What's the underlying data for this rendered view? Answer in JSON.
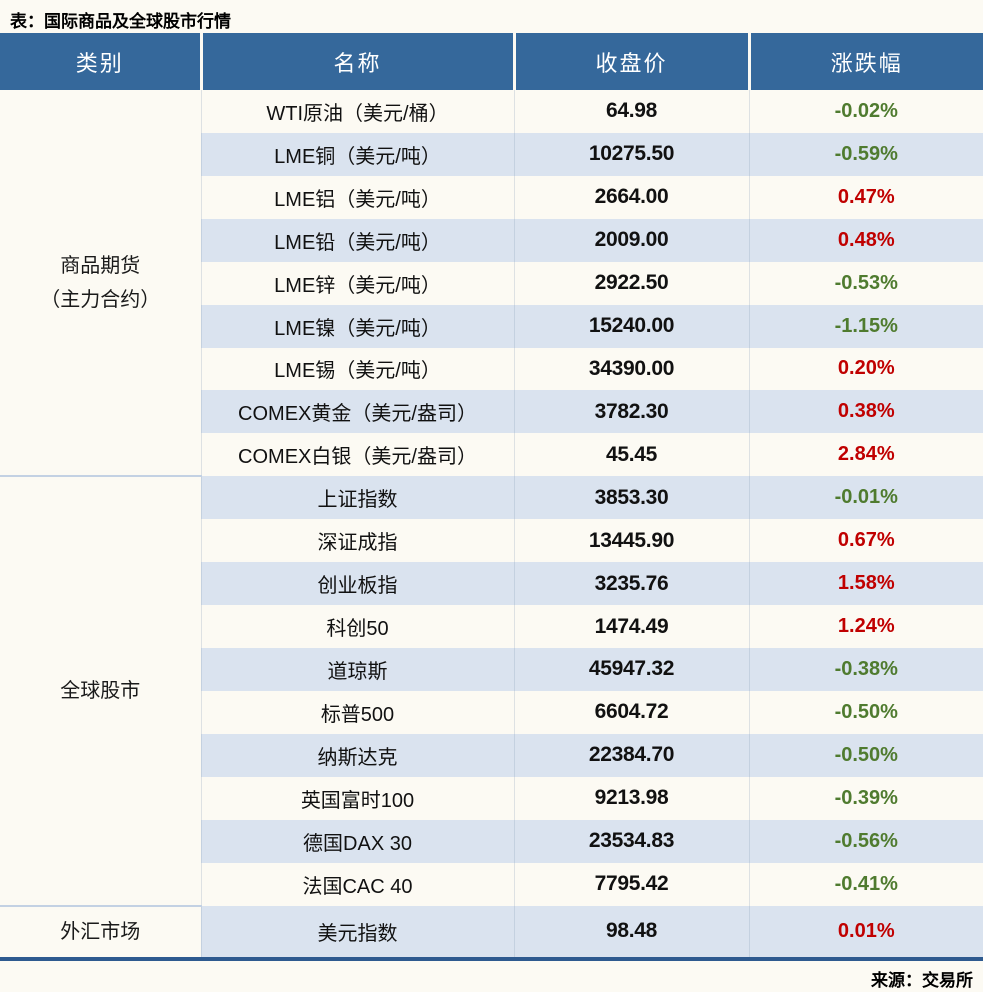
{
  "title": "表：国际商品及全球股市行情",
  "source": "来源：交易所",
  "colors": {
    "page_bg": "#FCFAF3",
    "header_bg": "#35689B",
    "stripe": "#DAE3EF",
    "up_red": "#C00000",
    "down_green": "#4F7B2F",
    "bottom_border": "#2E5A8F",
    "group_divider": "#C3D1E3"
  },
  "chart_data": {
    "type": "table",
    "title": "表：国际商品及全球股市行情",
    "source": "来源：交易所",
    "columns": [
      "类别",
      "名称",
      "收盘价",
      "涨跌幅"
    ],
    "groups": [
      {
        "category": "商品期货（主力合约）",
        "category_lines": [
          "商品期货",
          "（主力合约）"
        ],
        "rows": [
          {
            "name": "WTI原油（美元/桶）",
            "close": "64.98",
            "change": "-0.02%"
          },
          {
            "name": "LME铜（美元/吨）",
            "close": "10275.50",
            "change": "-0.59%"
          },
          {
            "name": "LME铝（美元/吨）",
            "close": "2664.00",
            "change": "0.47%"
          },
          {
            "name": "LME铅（美元/吨）",
            "close": "2009.00",
            "change": "0.48%"
          },
          {
            "name": "LME锌（美元/吨）",
            "close": "2922.50",
            "change": "-0.53%"
          },
          {
            "name": "LME镍（美元/吨）",
            "close": "15240.00",
            "change": "-1.15%"
          },
          {
            "name": "LME锡（美元/吨）",
            "close": "34390.00",
            "change": "0.20%"
          },
          {
            "name": "COMEX黄金（美元/盎司）",
            "close": "3782.30",
            "change": "0.38%"
          },
          {
            "name": "COMEX白银（美元/盎司）",
            "close": "45.45",
            "change": "2.84%"
          }
        ]
      },
      {
        "category": "全球股市",
        "category_lines": [
          "全球股市"
        ],
        "rows": [
          {
            "name": "上证指数",
            "close": "3853.30",
            "change": "-0.01%"
          },
          {
            "name": "深证成指",
            "close": "13445.90",
            "change": "0.67%"
          },
          {
            "name": "创业板指",
            "close": "3235.76",
            "change": "1.58%"
          },
          {
            "name": "科创50",
            "close": "1474.49",
            "change": "1.24%"
          },
          {
            "name": "道琼斯",
            "close": "45947.32",
            "change": "-0.38%"
          },
          {
            "name": "标普500",
            "close": "6604.72",
            "change": "-0.50%"
          },
          {
            "name": "纳斯达克",
            "close": "22384.70",
            "change": "-0.50%"
          },
          {
            "name": "英国富时100",
            "close": "9213.98",
            "change": "-0.39%"
          },
          {
            "name": "德国DAX 30",
            "close": "23534.83",
            "change": "-0.56%"
          },
          {
            "name": "法国CAC 40",
            "close": "7795.42",
            "change": "-0.41%"
          }
        ]
      },
      {
        "category": "外汇市场",
        "category_lines": [
          "外汇市场"
        ],
        "rows": [
          {
            "name": "美元指数",
            "close": "98.48",
            "change": "0.01%"
          }
        ]
      }
    ]
  }
}
